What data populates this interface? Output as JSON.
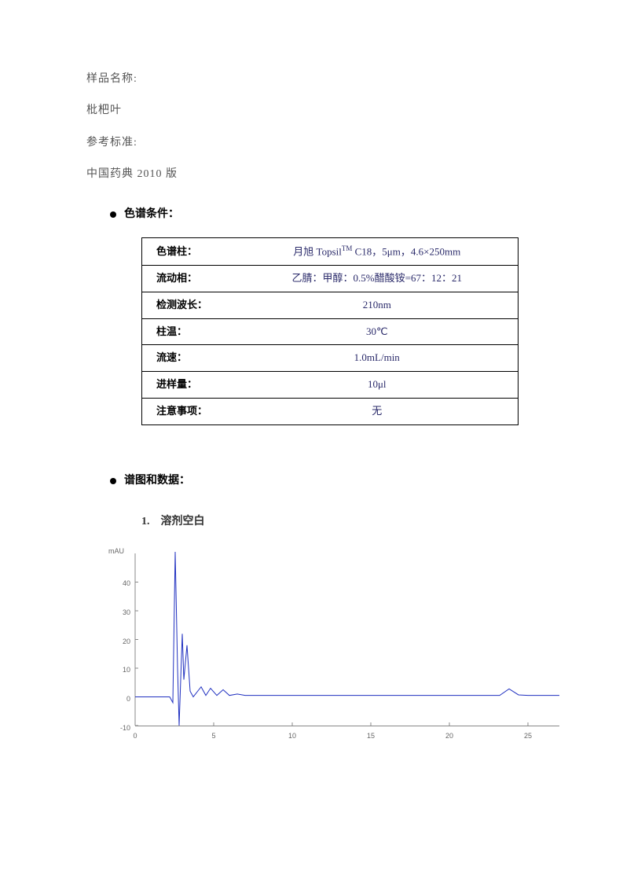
{
  "header": {
    "sample_label": "样品名称:",
    "sample_value": "枇杷叶",
    "ref_label": "参考标准:",
    "ref_value": "中国药典 2010 版"
  },
  "section_conditions": "色谱条件：",
  "conditions": {
    "rows": [
      {
        "label": "色谱柱：",
        "value_html": "月旭 Topsil<span class='sup'>TM</span> C18，5μm，4.6×250mm"
      },
      {
        "label": "流动相：",
        "value_html": "乙腈：甲醇：0.5%醋酸铵=67：12：21"
      },
      {
        "label": "检测波长：",
        "value_html": "210nm"
      },
      {
        "label": "柱温：",
        "value_html": "30℃"
      },
      {
        "label": "流速：",
        "value_html": "1.0mL/min"
      },
      {
        "label": "进样量：",
        "value_html": "10μl"
      },
      {
        "label": "注意事项：",
        "value_html": "无"
      }
    ]
  },
  "section_chromatogram": "谱图和数据：",
  "sub_blank": "1.　溶剂空白",
  "chart": {
    "type": "line",
    "y_unit": "mAU",
    "ylim": [
      -10,
      50
    ],
    "yticks": [
      -10,
      0,
      10,
      20,
      30,
      40
    ],
    "xlim": [
      0,
      27
    ],
    "xticks": [
      0,
      5,
      10,
      15,
      20,
      25
    ],
    "line_color": "#2030c0",
    "axis_color": "#888888",
    "background": "#ffffff",
    "points": [
      [
        0.0,
        0
      ],
      [
        2.2,
        0
      ],
      [
        2.4,
        -2
      ],
      [
        2.55,
        60
      ],
      [
        2.7,
        10
      ],
      [
        2.8,
        -10
      ],
      [
        3.0,
        22
      ],
      [
        3.1,
        6
      ],
      [
        3.3,
        18
      ],
      [
        3.5,
        2
      ],
      [
        3.7,
        0
      ],
      [
        4.2,
        3.5
      ],
      [
        4.5,
        0.5
      ],
      [
        4.8,
        3
      ],
      [
        5.2,
        0.5
      ],
      [
        5.6,
        2.5
      ],
      [
        6.0,
        0.5
      ],
      [
        6.5,
        1
      ],
      [
        7.0,
        0.5
      ],
      [
        8.0,
        0.5
      ],
      [
        9.0,
        0.5
      ],
      [
        10,
        0.5
      ],
      [
        12,
        0.5
      ],
      [
        15,
        0.5
      ],
      [
        18,
        0.5
      ],
      [
        20,
        0.5
      ],
      [
        22,
        0.5
      ],
      [
        23.2,
        0.5
      ],
      [
        23.8,
        2.8
      ],
      [
        24.4,
        0.7
      ],
      [
        25,
        0.5
      ],
      [
        27,
        0.5
      ]
    ]
  }
}
